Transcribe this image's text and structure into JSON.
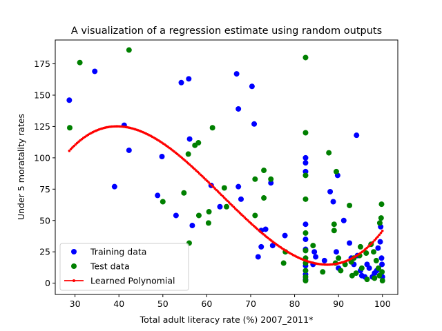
{
  "chart_data": {
    "type": "scatter",
    "title": "A visualization of a regression estimate using random outputs",
    "xlabel": "Total adult literacy rate (%) 2007_2011*",
    "ylabel": "Under 5 moratality rates",
    "xlim": [
      25.5,
      103.5
    ],
    "ylim": [
      -9,
      194
    ],
    "xticks": [
      30,
      40,
      50,
      60,
      70,
      80,
      90,
      100
    ],
    "yticks": [
      0,
      25,
      50,
      75,
      100,
      125,
      150,
      175
    ],
    "grid": false,
    "legend_position": "lower-left",
    "series": [
      {
        "name": "Training data",
        "style": "markers",
        "color": "#0000ff",
        "points": [
          [
            28.7,
            146
          ],
          [
            34.5,
            169
          ],
          [
            39,
            77
          ],
          [
            41.2,
            126
          ],
          [
            42.3,
            106
          ],
          [
            48.8,
            70
          ],
          [
            49.8,
            101
          ],
          [
            53,
            54
          ],
          [
            54.2,
            160
          ],
          [
            55.9,
            163
          ],
          [
            56.1,
            115
          ],
          [
            56.7,
            46
          ],
          [
            61,
            78
          ],
          [
            63,
            61
          ],
          [
            66.8,
            167
          ],
          [
            67.2,
            139
          ],
          [
            67.2,
            77
          ],
          [
            67.8,
            67
          ],
          [
            70.3,
            157
          ],
          [
            70.8,
            127
          ],
          [
            71.7,
            21
          ],
          [
            72.4,
            29
          ],
          [
            72.4,
            42
          ],
          [
            73.4,
            43
          ],
          [
            74.6,
            80
          ],
          [
            75,
            30
          ],
          [
            77.8,
            38
          ],
          [
            82.5,
            100
          ],
          [
            82.5,
            96
          ],
          [
            82.5,
            89
          ],
          [
            82.5,
            47
          ],
          [
            82.5,
            35
          ],
          [
            82.5,
            27
          ],
          [
            82.5,
            14
          ],
          [
            82.5,
            7
          ],
          [
            82.5,
            3
          ],
          [
            84.2,
            15
          ],
          [
            84.5,
            25
          ],
          [
            84.8,
            21
          ],
          [
            86.8,
            18
          ],
          [
            88.1,
            73
          ],
          [
            88.8,
            65
          ],
          [
            89.5,
            25
          ],
          [
            89.8,
            86
          ],
          [
            90,
            12
          ],
          [
            91.2,
            50
          ],
          [
            92.5,
            32
          ],
          [
            92.9,
            20
          ],
          [
            93.5,
            15
          ],
          [
            94.1,
            118
          ],
          [
            94.3,
            22
          ],
          [
            95,
            10
          ],
          [
            95.3,
            6
          ],
          [
            96,
            5
          ],
          [
            96.5,
            15
          ],
          [
            97,
            12
          ],
          [
            97.7,
            5
          ],
          [
            98.2,
            8
          ],
          [
            98.7,
            10
          ],
          [
            99,
            28
          ],
          [
            99.5,
            33
          ],
          [
            99.6,
            45
          ],
          [
            99.8,
            20
          ],
          [
            99.9,
            15
          ],
          [
            100,
            5
          ]
        ]
      },
      {
        "name": "Test data",
        "style": "markers",
        "color": "#008000",
        "points": [
          [
            28.8,
            124
          ],
          [
            31.1,
            176
          ],
          [
            42.3,
            186
          ],
          [
            50,
            65
          ],
          [
            54.8,
            72
          ],
          [
            55.8,
            103
          ],
          [
            56,
            32
          ],
          [
            57.3,
            110
          ],
          [
            58.1,
            112
          ],
          [
            58.2,
            54
          ],
          [
            60.4,
            48
          ],
          [
            60.5,
            57
          ],
          [
            61.3,
            124
          ],
          [
            64,
            76
          ],
          [
            64.5,
            61
          ],
          [
            71,
            83
          ],
          [
            71,
            54
          ],
          [
            73,
            90
          ],
          [
            73,
            68
          ],
          [
            74.6,
            83
          ],
          [
            77.5,
            16
          ],
          [
            77.9,
            25
          ],
          [
            82.5,
            180
          ],
          [
            82.5,
            120
          ],
          [
            82.5,
            86
          ],
          [
            82.5,
            67
          ],
          [
            82.5,
            40
          ],
          [
            82.5,
            26
          ],
          [
            82.5,
            20
          ],
          [
            82.5,
            16
          ],
          [
            82.5,
            10
          ],
          [
            82.5,
            5
          ],
          [
            82.5,
            2
          ],
          [
            84.2,
            30
          ],
          [
            86.4,
            9
          ],
          [
            87.8,
            104
          ],
          [
            89,
            42
          ],
          [
            89,
            47
          ],
          [
            89.5,
            89
          ],
          [
            89.3,
            16
          ],
          [
            90,
            20
          ],
          [
            90.5,
            10
          ],
          [
            91.5,
            15
          ],
          [
            92.5,
            62
          ],
          [
            92.9,
            17
          ],
          [
            93.1,
            6
          ],
          [
            93.5,
            20
          ],
          [
            94,
            8
          ],
          [
            94.8,
            22
          ],
          [
            95,
            29
          ],
          [
            95.3,
            12
          ],
          [
            96.3,
            24
          ],
          [
            96.5,
            3
          ],
          [
            97.4,
            31
          ],
          [
            98,
            25
          ],
          [
            98.2,
            4
          ],
          [
            98.6,
            18
          ],
          [
            99.1,
            12
          ],
          [
            99.3,
            6
          ],
          [
            99.4,
            48
          ],
          [
            99.7,
            52
          ],
          [
            99.8,
            63
          ],
          [
            99.9,
            9
          ],
          [
            100,
            2
          ]
        ]
      },
      {
        "name": "Learned Polynomial",
        "style": "line-markers",
        "color": "#ff0000",
        "curve": {
          "type": "cubic",
          "coefficients": [
            -225.04,
            20.8587,
            -0.38312,
            0.0020121
          ],
          "x_range": [
            28.7,
            100
          ]
        }
      }
    ]
  }
}
